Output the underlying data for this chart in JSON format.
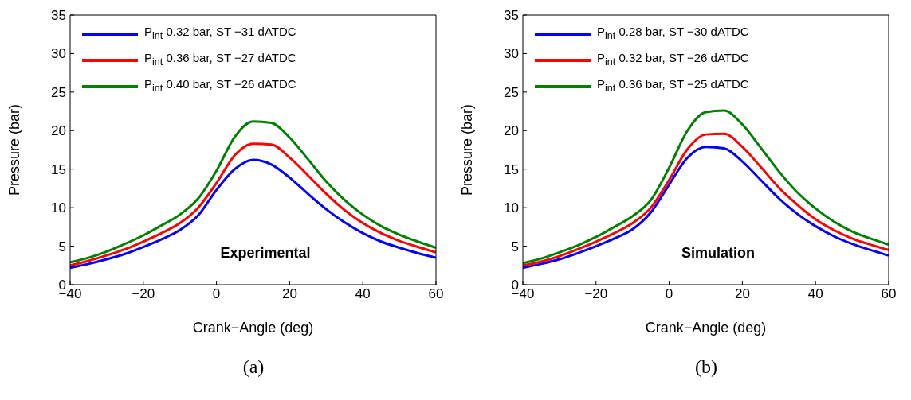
{
  "chart_data": [
    {
      "type": "line",
      "xlabel": "Crank−Angle (deg)",
      "ylabel": "Pressure (bar)",
      "annotations": [
        "Experimental",
        "(a)"
      ],
      "legend": "top left",
      "marker": "none",
      "xlim": [
        -40,
        60
      ],
      "xticks": [
        -40,
        -20,
        0,
        20,
        40,
        60
      ],
      "ylim": [
        0,
        35
      ],
      "yticks": [
        0,
        5,
        10,
        15,
        20,
        25,
        30,
        35
      ],
      "x": [
        -40,
        -35,
        -30,
        -25,
        -20,
        -15,
        -10,
        -5,
        0,
        5,
        10,
        15,
        20,
        25,
        30,
        35,
        40,
        45,
        50,
        55,
        60
      ],
      "series": [
        {
          "name": "P$_{int}$ 0.32 bar, ST −31 dATDC",
          "color": "#0000ff",
          "values": [
            2.2,
            2.7,
            3.3,
            4.0,
            4.9,
            5.9,
            7.1,
            9.0,
            12.3,
            15.0,
            16.2,
            15.6,
            13.9,
            11.8,
            9.8,
            8.1,
            6.7,
            5.6,
            4.8,
            4.1,
            3.5
          ]
        },
        {
          "name": "P$_{int}$ 0.36 bar, ST −27 dATDC",
          "color": "#ff0000",
          "values": [
            2.5,
            3.1,
            3.8,
            4.6,
            5.6,
            6.7,
            8.0,
            10.0,
            13.2,
            16.8,
            18.3,
            18.2,
            16.5,
            14.2,
            11.8,
            9.7,
            8.0,
            6.7,
            5.7,
            4.9,
            4.2
          ]
        },
        {
          "name": "P$_{int}$ 0.40 bar, ST −26 dATDC",
          "color": "#008000",
          "values": [
            2.9,
            3.5,
            4.3,
            5.3,
            6.4,
            7.7,
            9.1,
            11.2,
            14.8,
            19.2,
            21.2,
            21.0,
            19.1,
            16.3,
            13.4,
            11.0,
            9.1,
            7.6,
            6.5,
            5.6,
            4.8
          ]
        }
      ]
    },
    {
      "type": "line",
      "xlabel": "Crank−Angle (deg)",
      "ylabel": "Pressure (bar)",
      "annotations": [
        "Simulation",
        "(b)"
      ],
      "legend": "top left",
      "marker": "none",
      "xlim": [
        -40,
        60
      ],
      "xticks": [
        -40,
        -20,
        0,
        20,
        40,
        60
      ],
      "ylim": [
        0,
        35
      ],
      "yticks": [
        0,
        5,
        10,
        15,
        20,
        25,
        30,
        35
      ],
      "x": [
        -40,
        -35,
        -30,
        -25,
        -20,
        -15,
        -10,
        -5,
        0,
        5,
        10,
        15,
        20,
        25,
        30,
        35,
        40,
        45,
        50,
        55,
        60
      ],
      "series": [
        {
          "name": "P$_{int}$ 0.28 bar, ST −30 dATDC",
          "color": "#0000ff",
          "values": [
            2.2,
            2.7,
            3.3,
            4.1,
            5.0,
            6.0,
            7.2,
            9.4,
            13.0,
            16.5,
            17.9,
            17.7,
            16.0,
            13.6,
            11.2,
            9.2,
            7.6,
            6.3,
            5.3,
            4.5,
            3.8
          ]
        },
        {
          "name": "P$_{int}$ 0.32 bar, ST −26 dATDC",
          "color": "#ff0000",
          "values": [
            2.5,
            3.0,
            3.7,
            4.6,
            5.6,
            6.7,
            8.0,
            10.0,
            13.6,
            17.6,
            19.5,
            19.6,
            17.9,
            15.3,
            12.6,
            10.4,
            8.5,
            7.1,
            6.0,
            5.2,
            4.5
          ]
        },
        {
          "name": "P$_{int}$ 0.36 bar, ST −25 dATDC",
          "color": "#008000",
          "values": [
            2.8,
            3.4,
            4.2,
            5.1,
            6.2,
            7.5,
            8.9,
            11.0,
            15.2,
            20.0,
            22.4,
            22.6,
            20.8,
            17.8,
            14.7,
            12.0,
            9.9,
            8.2,
            6.9,
            6.0,
            5.2
          ]
        }
      ]
    }
  ]
}
